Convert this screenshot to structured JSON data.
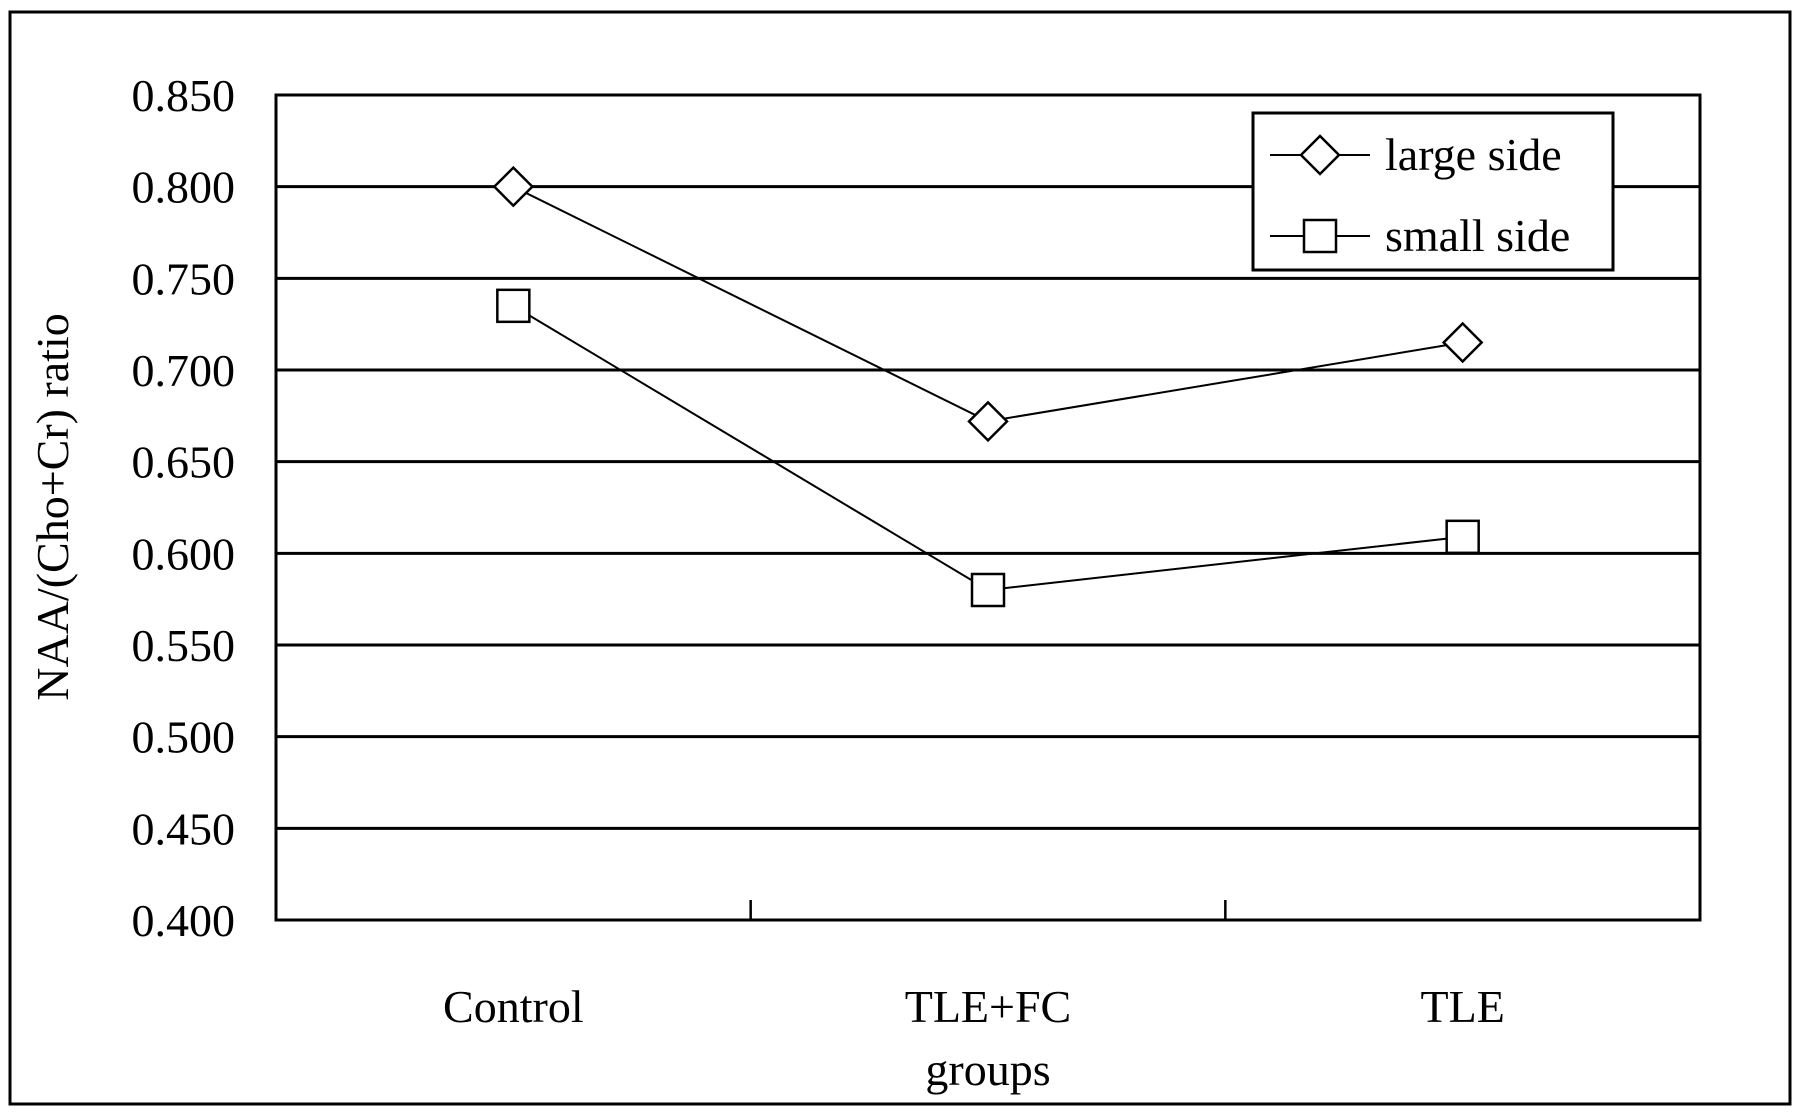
{
  "chart_data": {
    "type": "line",
    "title": "",
    "xlabel": "groups",
    "ylabel": "NAA/(Cho+Cr) ratio",
    "categories": [
      "Control",
      "TLE+FC",
      "TLE"
    ],
    "ylim": [
      0.4,
      0.85
    ],
    "ytick_step": 0.05,
    "ytick_labels": [
      "0.400",
      "0.450",
      "0.500",
      "0.550",
      "0.600",
      "0.650",
      "0.700",
      "0.750",
      "0.800",
      "0.850"
    ],
    "grid": "horizontal",
    "legend_position": "top-right",
    "series": [
      {
        "name": "large side",
        "marker": "diamond",
        "values": [
          0.8,
          0.672,
          0.715
        ]
      },
      {
        "name": "small side",
        "marker": "square",
        "values": [
          0.735,
          0.58,
          0.609
        ]
      }
    ]
  },
  "colors": {
    "line": "#000000",
    "background": "#ffffff"
  }
}
